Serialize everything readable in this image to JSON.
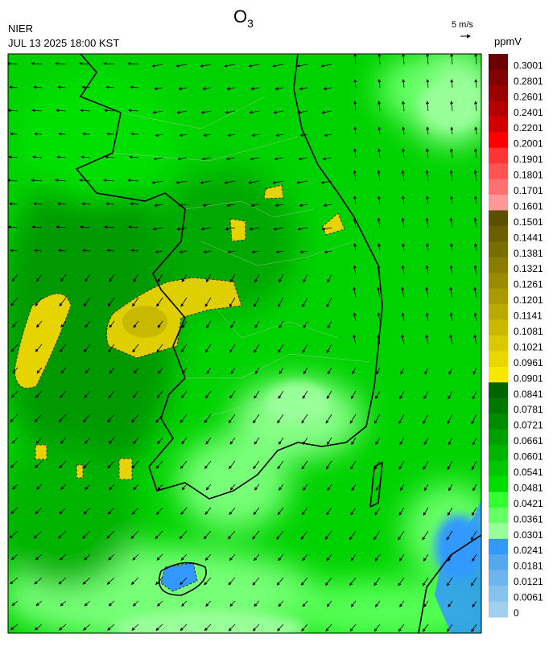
{
  "header": {
    "title": {
      "text": "O",
      "subscript": "3"
    },
    "agency": "NIER",
    "time": "JUL 13 2025 18:00 KST",
    "wind_scale": "5 m/s"
  },
  "colorbar": {
    "unit": "ppmV",
    "bands": [
      {
        "value": 0.3001,
        "color": "#6b0000"
      },
      {
        "value": 0.2801,
        "color": "#820000"
      },
      {
        "value": 0.2601,
        "color": "#9a0000"
      },
      {
        "value": 0.2401,
        "color": "#b40000"
      },
      {
        "value": 0.2201,
        "color": "#d00000"
      },
      {
        "value": 0.2001,
        "color": "#ff0000"
      },
      {
        "value": 0.1901,
        "color": "#ff3535"
      },
      {
        "value": 0.1801,
        "color": "#ff5252"
      },
      {
        "value": 0.1701,
        "color": "#ff7070"
      },
      {
        "value": 0.1601,
        "color": "#ff9999"
      },
      {
        "value": 0.1501,
        "color": "#5c5000"
      },
      {
        "value": 0.1441,
        "color": "#6a5e00"
      },
      {
        "value": 0.1381,
        "color": "#7a6d00"
      },
      {
        "value": 0.1321,
        "color": "#8a7c00"
      },
      {
        "value": 0.1261,
        "color": "#9a8b00"
      },
      {
        "value": 0.1201,
        "color": "#aa9a00"
      },
      {
        "value": 0.1141,
        "color": "#baaa00"
      },
      {
        "value": 0.1081,
        "color": "#cab900"
      },
      {
        "value": 0.1021,
        "color": "#dac800"
      },
      {
        "value": 0.0961,
        "color": "#ead700"
      },
      {
        "value": 0.0901,
        "color": "#f8e800"
      },
      {
        "value": 0.0841,
        "color": "#006400"
      },
      {
        "value": 0.0781,
        "color": "#007800"
      },
      {
        "value": 0.0721,
        "color": "#008c00"
      },
      {
        "value": 0.0661,
        "color": "#00a000"
      },
      {
        "value": 0.0601,
        "color": "#00b400"
      },
      {
        "value": 0.0541,
        "color": "#00c800"
      },
      {
        "value": 0.0481,
        "color": "#00dc00"
      },
      {
        "value": 0.0421,
        "color": "#33ff33"
      },
      {
        "value": 0.0361,
        "color": "#66ff66"
      },
      {
        "value": 0.0301,
        "color": "#99ff99"
      },
      {
        "value": 0.0241,
        "color": "#3399ff"
      },
      {
        "value": 0.0181,
        "color": "#55a8ee"
      },
      {
        "value": 0.0121,
        "color": "#6eb4ee"
      },
      {
        "value": 0.0061,
        "color": "#88c2ee"
      },
      {
        "value": 0,
        "color": "#a0d0ee"
      }
    ]
  }
}
